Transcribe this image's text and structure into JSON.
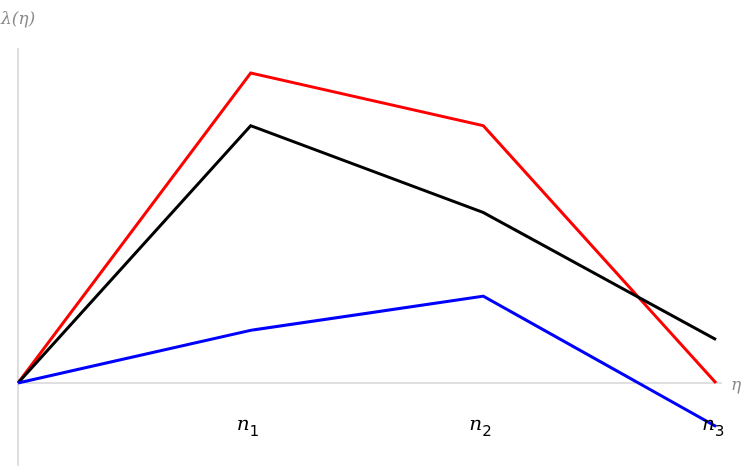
{
  "chart_data": {
    "type": "line",
    "title": "",
    "xlabel": "η",
    "ylabel": "λ(η)",
    "x": [
      0,
      1,
      2,
      3
    ],
    "x_ticks": [
      {
        "x": 1,
        "base": "n",
        "sub": "1"
      },
      {
        "x": 2,
        "base": "n",
        "sub": "2"
      },
      {
        "x": 3,
        "base": "n",
        "sub": "3"
      }
    ],
    "xlim": [
      0,
      3.05
    ],
    "ylim": [
      -0.25,
      1.3
    ],
    "grid": false,
    "legend": "none",
    "series": [
      {
        "color": "#ff0000",
        "values": [
          0,
          1.0,
          0.83,
          0.0
        ]
      },
      {
        "color": "#000000",
        "values": [
          0,
          0.83,
          0.55,
          0.14
        ]
      },
      {
        "color": "#0000ff",
        "values": [
          0,
          0.17,
          0.28,
          -0.14
        ]
      }
    ]
  }
}
